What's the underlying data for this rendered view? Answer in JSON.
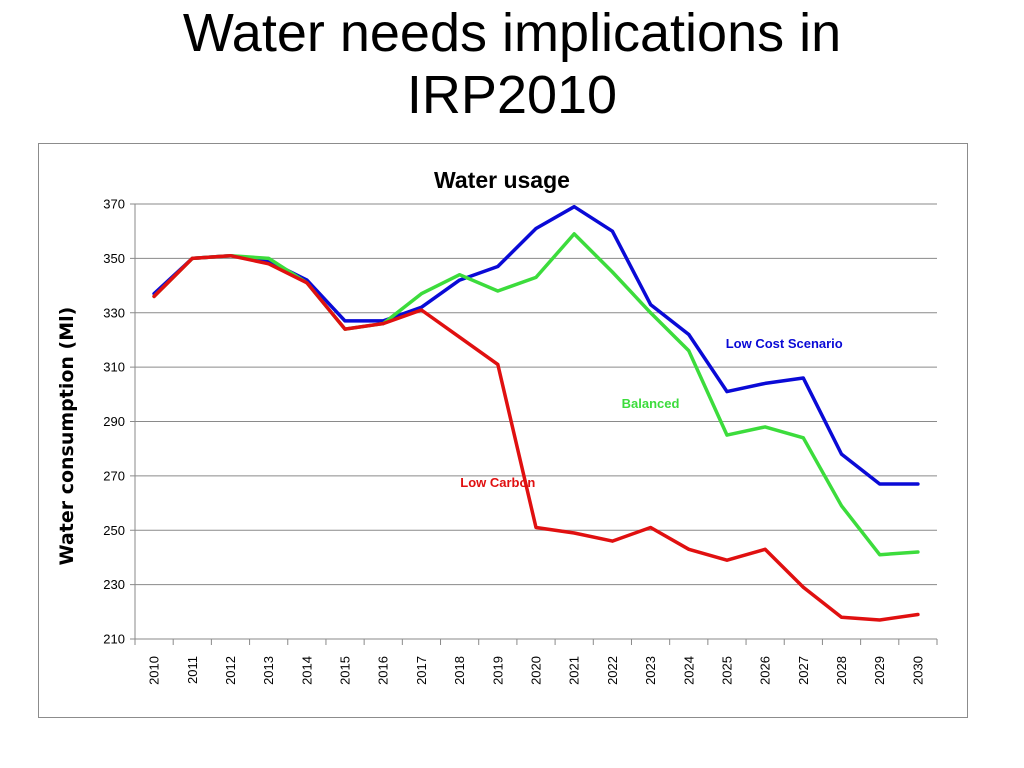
{
  "slide": {
    "title": "Water needs implications in IRP2010"
  },
  "chart_data": {
    "type": "line",
    "title": "Water usage",
    "xlabel": "",
    "ylabel": "Water consumption   (Ml)",
    "ylim": [
      210,
      370
    ],
    "yticks": [
      210,
      230,
      250,
      270,
      290,
      310,
      330,
      350,
      370
    ],
    "grid": true,
    "legend": "inline labels",
    "categories": [
      "2010",
      "2011",
      "2012",
      "2013",
      "2014",
      "2015",
      "2016",
      "2017",
      "2018",
      "2019",
      "2020",
      "2021",
      "2022",
      "2023",
      "2024",
      "2025",
      "2026",
      "2027",
      "2028",
      "2029",
      "2030"
    ],
    "series": [
      {
        "name": "Low Cost Scenario",
        "color": "#0a0ad6",
        "values": [
          337,
          350,
          351,
          349,
          342,
          327,
          327,
          332,
          342,
          347,
          361,
          369,
          360,
          333,
          322,
          301,
          304,
          306,
          278,
          267,
          267
        ]
      },
      {
        "name": "Balanced",
        "color": "#3cdc3c",
        "values": [
          336,
          350,
          351,
          350,
          341,
          324,
          326,
          337,
          344,
          338,
          343,
          359,
          345,
          330,
          316,
          285,
          288,
          284,
          259,
          241,
          242
        ]
      },
      {
        "name": "Low Carbon",
        "color": "#e01010",
        "values": [
          336,
          350,
          351,
          348,
          341,
          324,
          326,
          331,
          321,
          311,
          251,
          249,
          246,
          251,
          243,
          239,
          243,
          229,
          218,
          217,
          219
        ]
      }
    ]
  }
}
